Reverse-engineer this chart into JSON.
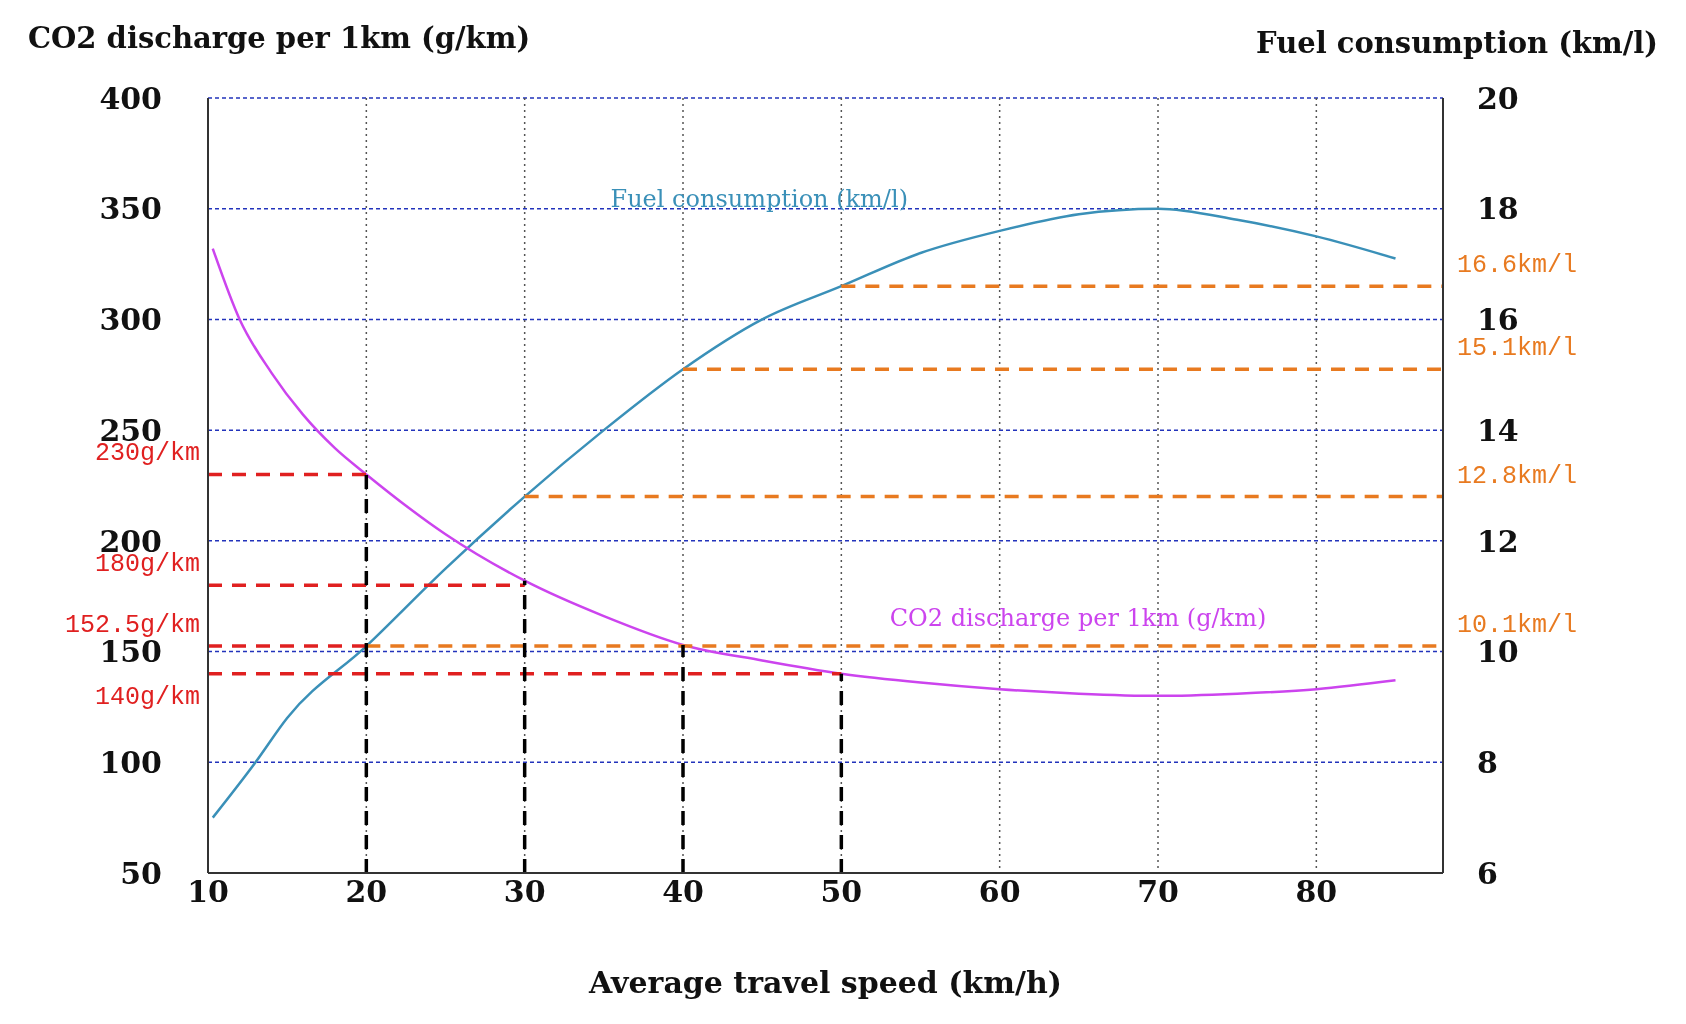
{
  "chart_data": {
    "type": "line",
    "xlabel": "Average travel speed (km/h)",
    "ylabel": "CO2 discharge per 1km (g/km)",
    "y2label": "Fuel consumption (km/l)",
    "xlim": [
      10,
      88
    ],
    "xticks": [
      10,
      20,
      30,
      40,
      50,
      60,
      70,
      80
    ],
    "ylim": [
      50,
      400
    ],
    "yticks": [
      50,
      100,
      150,
      200,
      250,
      300,
      350,
      400
    ],
    "y2lim": [
      6,
      20
    ],
    "y2ticks": [
      6,
      8,
      10,
      12,
      14,
      16,
      18,
      20
    ],
    "grid": true,
    "legend": false,
    "series": [
      {
        "name": "Fuel consumption (km/l)",
        "color": "#3a90b8",
        "axis": "y2",
        "line_style": "solid",
        "x": [
          10.3,
          13,
          15,
          20,
          25,
          30,
          35,
          40,
          45,
          50,
          55,
          60,
          65,
          70,
          75,
          80,
          85
        ],
        "values": [
          7.0,
          8.0,
          8.8,
          10.1,
          11.5,
          12.8,
          14.0,
          15.1,
          16.0,
          16.6,
          17.2,
          17.6,
          17.9,
          18.0,
          17.8,
          17.5,
          17.1
        ]
      },
      {
        "name": "CO2 discharge per 1km (g/km)",
        "color": "#cc44ee",
        "axis": "y",
        "line_style": "solid",
        "x": [
          10.3,
          12,
          14,
          16,
          18,
          20,
          25,
          30,
          35,
          40,
          45,
          50,
          55,
          60,
          65,
          70,
          75,
          80,
          85
        ],
        "values": [
          332,
          300,
          276,
          257,
          242,
          230,
          203,
          182,
          166,
          153,
          146,
          140,
          136,
          133,
          131,
          130,
          131,
          133,
          137
        ]
      },
      {
        "color": "#e02020",
        "axis": "y",
        "line_style": "dashed",
        "x": [
          10,
          20
        ],
        "values": [
          230,
          230
        ],
        "value_labels": [
          "230g/km",
          null
        ]
      },
      {
        "color": "#e02020",
        "axis": "y",
        "line_style": "dashed",
        "x": [
          10,
          30
        ],
        "values": [
          180,
          180
        ],
        "value_labels": [
          "180g/km",
          null
        ]
      },
      {
        "color": "#e02020",
        "axis": "y",
        "line_style": "dashed",
        "x": [
          10,
          20
        ],
        "values": [
          152.5,
          152.5
        ],
        "value_labels": [
          "152.5g/km",
          null
        ]
      },
      {
        "color": "#e02020",
        "axis": "y",
        "line_style": "dashed",
        "x": [
          10,
          50
        ],
        "values": [
          140,
          140
        ],
        "value_labels": [
          "140g/km",
          null
        ]
      },
      {
        "color": "#e87a20",
        "axis": "y2",
        "line_style": "dashed",
        "x": [
          20,
          88
        ],
        "values": [
          10.1,
          10.1
        ],
        "value_labels": [
          null,
          "10.1km/l"
        ]
      },
      {
        "color": "#e87a20",
        "axis": "y2",
        "line_style": "dashed",
        "x": [
          30,
          88
        ],
        "values": [
          12.8,
          12.8
        ],
        "value_labels": [
          null,
          "12.8km/l"
        ]
      },
      {
        "color": "#e87a20",
        "axis": "y2",
        "line_style": "dashed",
        "x": [
          40,
          88
        ],
        "values": [
          15.1,
          15.1
        ],
        "value_labels": [
          null,
          "15.1km/l"
        ]
      },
      {
        "color": "#e87a20",
        "axis": "y2",
        "line_style": "dashed",
        "x": [
          50,
          88
        ],
        "values": [
          16.6,
          16.6
        ],
        "value_labels": [
          null,
          "16.6km/l"
        ]
      },
      {
        "color": "#000000",
        "axis": "y",
        "line_style": "dashed",
        "x": [
          20,
          20
        ],
        "values": [
          50,
          230
        ]
      },
      {
        "color": "#000000",
        "axis": "y",
        "line_style": "dashed",
        "x": [
          30,
          30
        ],
        "values": [
          50,
          182
        ]
      },
      {
        "color": "#000000",
        "axis": "y",
        "line_style": "dashed",
        "x": [
          40,
          40
        ],
        "values": [
          50,
          153
        ]
      },
      {
        "color": "#000000",
        "axis": "y",
        "line_style": "dashed",
        "x": [
          50,
          50
        ],
        "values": [
          50,
          140
        ]
      }
    ]
  }
}
